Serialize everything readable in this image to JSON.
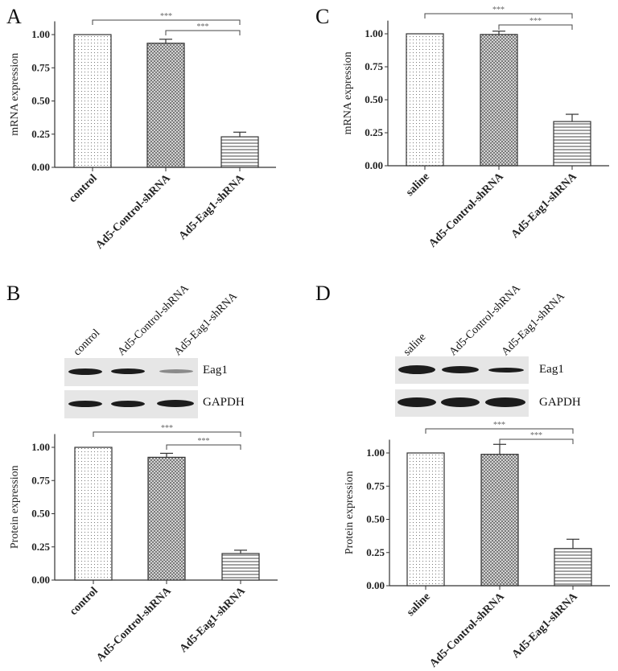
{
  "panels": {
    "A": {
      "letter": "A"
    },
    "B": {
      "letter": "B"
    },
    "C": {
      "letter": "C"
    },
    "D": {
      "letter": "D"
    }
  },
  "blots": {
    "B": {
      "lanes": [
        "control",
        "Ad5-Control-shRNA",
        "Ad5-Eag1-shRNA"
      ],
      "rows": [
        "Eag1",
        "GAPDH"
      ]
    },
    "D": {
      "lanes": [
        "saline",
        "Ad5-Control-shRNA",
        "Ad5-Eag1-shRNA"
      ],
      "rows": [
        "Eag1",
        "GAPDH"
      ]
    }
  },
  "chart_data": [
    {
      "panel": "A",
      "type": "bar",
      "title": "",
      "xlabel": "",
      "ylabel": "mRNA expression",
      "categories": [
        "control",
        "Ad5-Control-shRNA",
        "Ad5-Eag1-shRNA"
      ],
      "values": [
        1.0,
        0.935,
        0.23
      ],
      "errors": [
        0.0,
        0.03,
        0.035
      ],
      "patterns": [
        "dots",
        "crosshatch",
        "horizontal-lines"
      ],
      "ylim": [
        0,
        1.1
      ],
      "yticks": [
        "0.00",
        "0.25",
        "0.50",
        "0.75",
        "1.00"
      ],
      "significance": [
        {
          "from": 0,
          "to": 2,
          "label": "***"
        },
        {
          "from": 1,
          "to": 2,
          "label": "***"
        }
      ]
    },
    {
      "panel": "C",
      "type": "bar",
      "title": "",
      "xlabel": "",
      "ylabel": "mRNA expression",
      "categories": [
        "saline",
        "Ad5-Control-shRNA",
        "Ad5-Eag1-shRNA"
      ],
      "values": [
        1.0,
        0.995,
        0.335
      ],
      "errors": [
        0.0,
        0.025,
        0.055
      ],
      "patterns": [
        "dots",
        "crosshatch",
        "horizontal-lines"
      ],
      "ylim": [
        0,
        1.1
      ],
      "yticks": [
        "0.00",
        "0.25",
        "0.50",
        "0.75",
        "1.00"
      ],
      "significance": [
        {
          "from": 0,
          "to": 2,
          "label": "***"
        },
        {
          "from": 1,
          "to": 2,
          "label": "***"
        }
      ]
    },
    {
      "panel": "B",
      "type": "bar",
      "title": "",
      "xlabel": "",
      "ylabel": "Protein expression",
      "categories": [
        "control",
        "Ad5-Control-shRNA",
        "Ad5-Eag1-shRNA"
      ],
      "values": [
        1.0,
        0.925,
        0.2
      ],
      "errors": [
        0.0,
        0.03,
        0.025
      ],
      "patterns": [
        "dots",
        "crosshatch",
        "horizontal-lines"
      ],
      "ylim": [
        0,
        1.1
      ],
      "yticks": [
        "0.00",
        "0.25",
        "0.50",
        "0.75",
        "1.00"
      ],
      "significance": [
        {
          "from": 0,
          "to": 2,
          "label": "***"
        },
        {
          "from": 1,
          "to": 2,
          "label": "***"
        }
      ]
    },
    {
      "panel": "D",
      "type": "bar",
      "title": "",
      "xlabel": "",
      "ylabel": "Protein expression",
      "categories": [
        "saline",
        "Ad5-Control-shRNA",
        "Ad5-Eag1-shRNA"
      ],
      "values": [
        1.0,
        0.99,
        0.28
      ],
      "errors": [
        0.0,
        0.075,
        0.07
      ],
      "patterns": [
        "dots",
        "crosshatch",
        "horizontal-lines"
      ],
      "ylim": [
        0,
        1.1
      ],
      "yticks": [
        "0.00",
        "0.25",
        "0.50",
        "0.75",
        "1.00"
      ],
      "significance": [
        {
          "from": 0,
          "to": 2,
          "label": "***"
        },
        {
          "from": 1,
          "to": 2,
          "label": "***"
        }
      ]
    }
  ]
}
